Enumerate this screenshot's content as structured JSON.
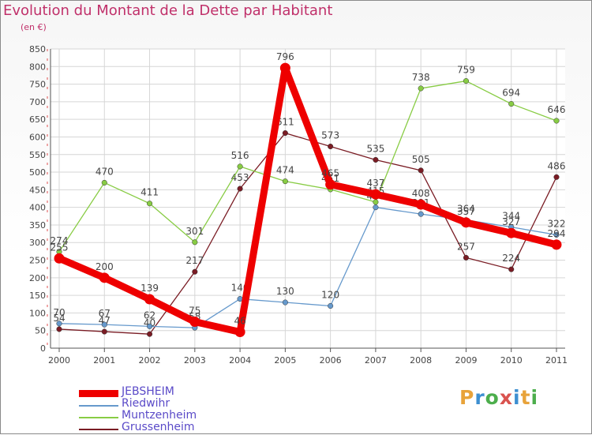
{
  "chart_data": {
    "type": "line",
    "title": "Evolution du Montant de la Dette par Habitant",
    "subtitle": "(en €)",
    "x": [
      "2000",
      "2001",
      "2002",
      "2003",
      "2004",
      "2005",
      "2006",
      "2007",
      "2008",
      "2009",
      "2010",
      "2011"
    ],
    "ylim": [
      0,
      850
    ],
    "yticks": [
      0,
      50,
      100,
      150,
      200,
      250,
      300,
      350,
      400,
      450,
      500,
      550,
      600,
      650,
      700,
      750,
      800,
      850
    ],
    "grid": true,
    "legend_position": "bottom-left",
    "series": [
      {
        "name": "JEBSHEIM",
        "color": "#ee0000",
        "values": [
          255,
          200,
          139,
          75,
          46,
          796,
          465,
          437,
          408,
          357,
          327,
          294
        ]
      },
      {
        "name": "Riedwihr",
        "color": "#6699cc",
        "values": [
          70,
          67,
          62,
          58,
          140,
          130,
          120,
          400,
          381,
          364,
          344,
          322
        ]
      },
      {
        "name": "Muntzenheim",
        "color": "#88cc44",
        "values": [
          274,
          470,
          411,
          301,
          516,
          474,
          451,
          415,
          738,
          759,
          694,
          646
        ]
      },
      {
        "name": "Grussenheim",
        "color": "#7a1c24",
        "values": [
          54,
          47,
          40,
          217,
          453,
          611,
          573,
          535,
          505,
          257,
          224,
          486
        ]
      }
    ]
  },
  "logo": {
    "letters": [
      "P",
      "r",
      "o",
      "x",
      "i",
      "t",
      "i"
    ],
    "colors": [
      "#e8a33a",
      "#3d8fd1",
      "#4cae4c",
      "#d9534f",
      "#3d8fd1",
      "#e8a33a",
      "#4cae4c"
    ]
  }
}
